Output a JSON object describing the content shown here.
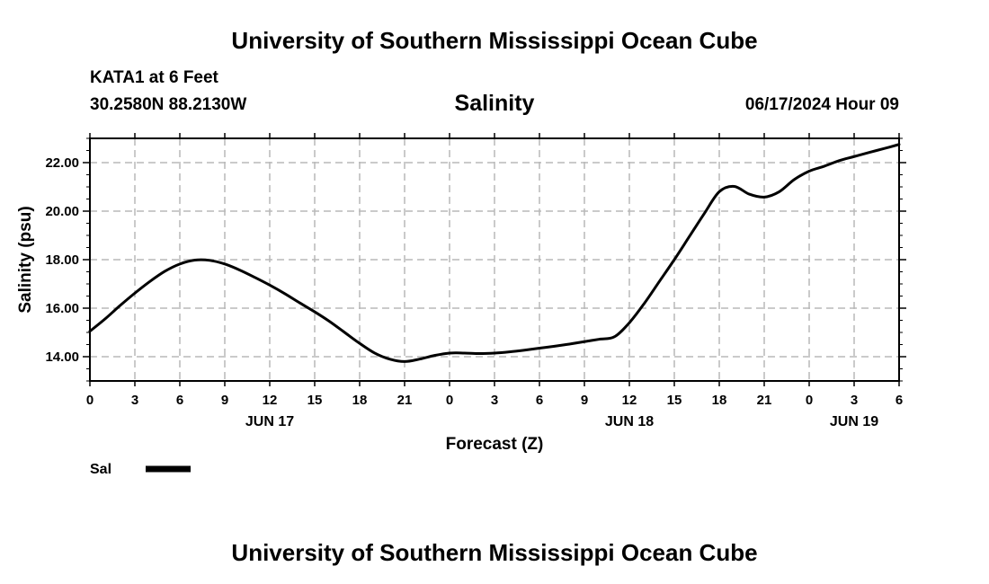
{
  "header": {
    "title": "University of Southern Mississippi Ocean Cube",
    "station": "KATA1 at 6 Feet",
    "coordinates": "30.2580N  88.2130W",
    "chart_title": "Salinity",
    "run_time": "06/17/2024 Hour 09"
  },
  "footer": {
    "title": "University of Southern Mississippi Ocean Cube"
  },
  "chart_data": {
    "type": "line",
    "title": "Salinity",
    "xlabel": "Forecast (Z)",
    "ylabel": "Salinity (psu)",
    "x_unit": "forecast hour",
    "xlim": [
      0,
      54
    ],
    "ylim": [
      13.0,
      23.0
    ],
    "x_ticks": [
      {
        "x": 0,
        "label": "0"
      },
      {
        "x": 3,
        "label": "3"
      },
      {
        "x": 6,
        "label": "6"
      },
      {
        "x": 9,
        "label": "9"
      },
      {
        "x": 12,
        "label": "12"
      },
      {
        "x": 15,
        "label": "15"
      },
      {
        "x": 18,
        "label": "18"
      },
      {
        "x": 21,
        "label": "21"
      },
      {
        "x": 24,
        "label": "0"
      },
      {
        "x": 27,
        "label": "3"
      },
      {
        "x": 30,
        "label": "6"
      },
      {
        "x": 33,
        "label": "9"
      },
      {
        "x": 36,
        "label": "12"
      },
      {
        "x": 39,
        "label": "15"
      },
      {
        "x": 42,
        "label": "18"
      },
      {
        "x": 45,
        "label": "21"
      },
      {
        "x": 48,
        "label": "0"
      },
      {
        "x": 51,
        "label": "3"
      },
      {
        "x": 54,
        "label": "6"
      }
    ],
    "date_labels": [
      {
        "x": 12,
        "label": "JUN 17"
      },
      {
        "x": 36,
        "label": "JUN 18"
      },
      {
        "x": 51,
        "label": "JUN 19"
      }
    ],
    "y_ticks": [
      {
        "y": 14.0,
        "label": "14.00"
      },
      {
        "y": 16.0,
        "label": "16.00"
      },
      {
        "y": 18.0,
        "label": "18.00"
      },
      {
        "y": 20.0,
        "label": "20.00"
      },
      {
        "y": 22.0,
        "label": "22.00"
      }
    ],
    "y_minor_step": 0.5,
    "grid": true,
    "legend_position": "bottom-left",
    "series": [
      {
        "name": "Sal",
        "color": "#000000",
        "x": [
          0,
          1,
          2,
          3,
          4,
          5,
          6,
          7,
          8,
          9,
          10,
          11,
          12,
          13,
          14,
          15,
          16,
          17,
          18,
          19,
          20,
          21,
          22,
          23,
          24,
          25,
          26,
          27,
          28,
          29,
          30,
          31,
          32,
          33,
          34,
          35,
          36,
          37,
          38,
          39,
          40,
          41,
          42,
          43,
          44,
          45,
          46,
          47,
          48,
          49,
          50,
          51,
          52,
          53,
          54
        ],
        "y": [
          15.05,
          15.55,
          16.1,
          16.62,
          17.1,
          17.52,
          17.82,
          17.98,
          17.97,
          17.82,
          17.57,
          17.27,
          16.95,
          16.6,
          16.22,
          15.85,
          15.45,
          15.0,
          14.55,
          14.15,
          13.9,
          13.8,
          13.9,
          14.05,
          14.15,
          14.15,
          14.13,
          14.15,
          14.2,
          14.27,
          14.35,
          14.43,
          14.52,
          14.62,
          14.72,
          14.82,
          15.4,
          16.2,
          17.1,
          18.0,
          18.95,
          19.9,
          20.8,
          21.02,
          20.7,
          20.58,
          20.8,
          21.3,
          21.65,
          21.85,
          22.08,
          22.25,
          22.42,
          22.58,
          22.75
        ]
      }
    ]
  }
}
